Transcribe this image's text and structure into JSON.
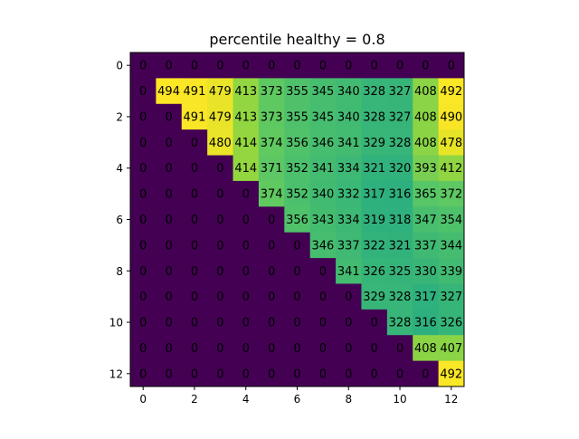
{
  "chart_data": {
    "type": "heatmap",
    "title": "percentile healthy = 0.8",
    "xlabel": "",
    "ylabel": "",
    "colormap": "viridis",
    "vmin": 0,
    "vmax": 494,
    "x_ticks": [
      "0",
      "2",
      "4",
      "6",
      "8",
      "10",
      "12"
    ],
    "y_ticks": [
      "0",
      "2",
      "4",
      "6",
      "8",
      "10",
      "12"
    ],
    "matrix": [
      [
        0,
        0,
        0,
        0,
        0,
        0,
        0,
        0,
        0,
        0,
        0,
        0,
        0
      ],
      [
        0,
        494,
        491,
        479,
        413,
        373,
        355,
        345,
        340,
        328,
        327,
        408,
        492
      ],
      [
        0,
        0,
        491,
        479,
        413,
        373,
        355,
        345,
        340,
        328,
        327,
        408,
        490
      ],
      [
        0,
        0,
        0,
        480,
        414,
        374,
        356,
        346,
        341,
        329,
        328,
        408,
        478
      ],
      [
        0,
        0,
        0,
        0,
        414,
        371,
        352,
        341,
        334,
        321,
        320,
        393,
        412
      ],
      [
        0,
        0,
        0,
        0,
        0,
        374,
        352,
        340,
        332,
        317,
        316,
        365,
        372
      ],
      [
        0,
        0,
        0,
        0,
        0,
        0,
        356,
        343,
        334,
        319,
        318,
        347,
        354
      ],
      [
        0,
        0,
        0,
        0,
        0,
        0,
        0,
        346,
        337,
        322,
        321,
        337,
        344
      ],
      [
        0,
        0,
        0,
        0,
        0,
        0,
        0,
        0,
        341,
        326,
        325,
        330,
        339
      ],
      [
        0,
        0,
        0,
        0,
        0,
        0,
        0,
        0,
        0,
        329,
        328,
        317,
        327
      ],
      [
        0,
        0,
        0,
        0,
        0,
        0,
        0,
        0,
        0,
        0,
        328,
        316,
        326
      ],
      [
        0,
        0,
        0,
        0,
        0,
        0,
        0,
        0,
        0,
        0,
        0,
        408,
        407
      ],
      [
        0,
        0,
        0,
        0,
        0,
        0,
        0,
        0,
        0,
        0,
        0,
        0,
        492
      ]
    ]
  }
}
